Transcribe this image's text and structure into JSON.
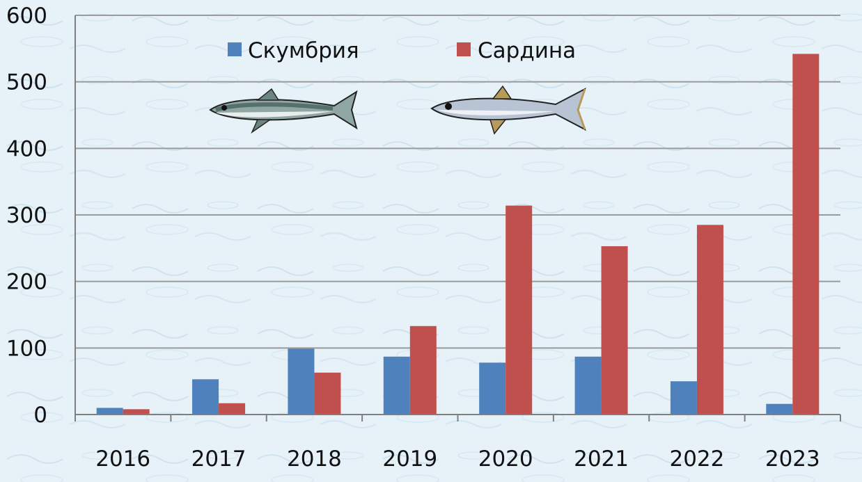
{
  "chart_data": {
    "type": "bar",
    "categories": [
      "2016",
      "2017",
      "2018",
      "2019",
      "2020",
      "2021",
      "2022",
      "2023"
    ],
    "series": [
      {
        "name": "Скумбрия",
        "values": [
          10,
          53,
          99,
          87,
          78,
          87,
          50,
          16
        ],
        "color": "#4f81bd"
      },
      {
        "name": "Сардина",
        "values": [
          8,
          17,
          63,
          133,
          314,
          253,
          285,
          542
        ],
        "color": "#c0504d"
      }
    ],
    "title": "",
    "xlabel": "",
    "ylabel": "",
    "ylim": [
      0,
      600
    ],
    "yticks": [
      0,
      100,
      200,
      300,
      400,
      500,
      600
    ],
    "grid": true,
    "legend_position": "top-center",
    "background_color": "#e6f1f8",
    "gridline_color": "#9a9a9a",
    "legend_icons": [
      "mackerel-fish-icon",
      "sardine-fish-icon"
    ]
  }
}
